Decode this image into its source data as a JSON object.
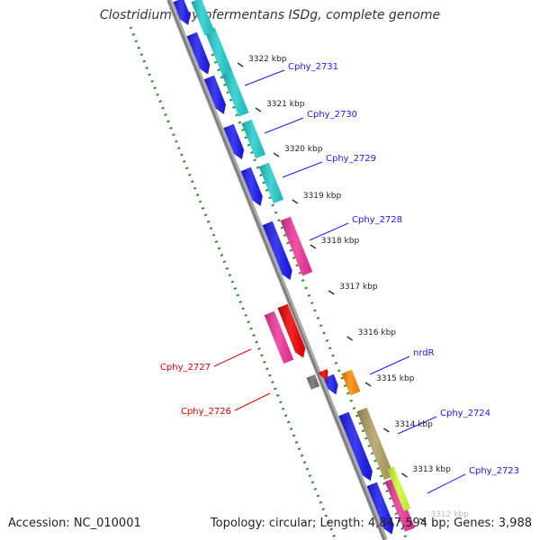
{
  "title": "Clostridium phytofermentans ISDg, complete genome",
  "accession": "Accession: NC_010001",
  "summary": "Topology: circular; Length: 4,847,594 bp; Genes: 3,988",
  "ticks": [
    "3322 kbp",
    "3321 kbp",
    "3320 kbp",
    "3319 kbp",
    "3318 kbp",
    "3317 kbp",
    "3316 kbp",
    "3315 kbp",
    "3314 kbp",
    "3313 kbp",
    "3312 kbp"
  ],
  "genes": [
    {
      "label": "Cphy_2731",
      "strand": "forward",
      "color_key": "cyan"
    },
    {
      "label": "Cphy_2730",
      "strand": "forward",
      "color_key": "cyan"
    },
    {
      "label": "Cphy_2729",
      "strand": "forward",
      "color_key": "cyan"
    },
    {
      "label": "Cphy_2728",
      "strand": "forward",
      "color_key": "pink"
    },
    {
      "label": "nrdR",
      "strand": "forward",
      "color_key": "orange"
    },
    {
      "label": "Cphy_2724",
      "strand": "forward",
      "color_key": "olive"
    },
    {
      "label": "Cphy_2723",
      "strand": "forward",
      "color_key": "pink"
    },
    {
      "label": "Cphy_2727",
      "strand": "reverse",
      "color_key": "pink"
    },
    {
      "label": "Cphy_2726",
      "strand": "reverse",
      "color_key": "gray"
    }
  ],
  "colors": {
    "forward_label": "#1a1aff",
    "reverse_label": "#dd0000",
    "cds": "#1a1aee",
    "cyan": "#22cccc",
    "pink": "#ee3399",
    "red": "#ee0000",
    "orange": "#ff8800",
    "olive": "#b0a060",
    "gray": "#707070",
    "backbone": "#909090",
    "gc_dots": "#338833"
  }
}
